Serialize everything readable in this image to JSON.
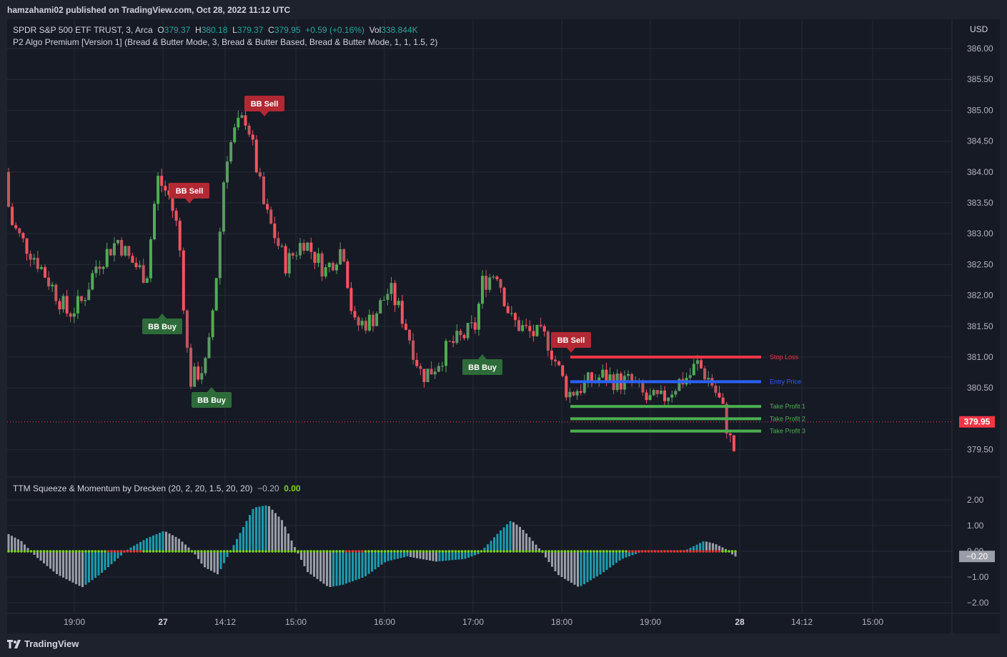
{
  "header": {
    "published": "hamzahami02 published on TradingView.com, Oct 28, 2022 11:12 UTC"
  },
  "symbol": {
    "name": "SPDR S&P 500 ETF TRUST, 3, Arca",
    "o_label": "O",
    "o_value": "379.37",
    "h_label": "H",
    "h_value": "380.18",
    "l_label": "L",
    "l_value": "379.37",
    "c_label": "C",
    "c_value": "379.95",
    "change": "+0.59 (+0.16%)",
    "vol_label": "Vol",
    "vol_value": "338.844K"
  },
  "indicator": {
    "title": "P2 Algo Premium [Version 1] (Bread & Butter Mode, 3, Bread & Butter Based, Bread & Butter Mode, 1, 1, 1.5, 2)"
  },
  "oscillator": {
    "title": "TTM Squeeze & Momentum by Drecken (20, 2, 20, 1.5, 20, 20)",
    "value1": "−0.20",
    "value2": "0.00"
  },
  "currency": "USD",
  "price_axis": [
    "386.00",
    "385.50",
    "385.00",
    "384.50",
    "384.00",
    "383.50",
    "383.00",
    "382.50",
    "382.00",
    "381.50",
    "381.00",
    "380.50",
    "379.50"
  ],
  "current_price": "379.95",
  "osc_axis": [
    "2.00",
    "1.00",
    "0.00",
    "−1.00",
    "−2.00"
  ],
  "osc_current": "−0.20",
  "time_axis": [
    "19:00",
    "27",
    "14:12",
    "15:00",
    "16:00",
    "17:00",
    "18:00",
    "19:00",
    "28",
    "14:12",
    "15:00"
  ],
  "signals": [
    {
      "label": "BB Sell",
      "type": "sell"
    },
    {
      "label": "BB Sell",
      "type": "sell"
    },
    {
      "label": "BB Buy",
      "type": "buy"
    },
    {
      "label": "BB Buy",
      "type": "buy"
    },
    {
      "label": "BB Buy",
      "type": "buy"
    },
    {
      "label": "BB Sell",
      "type": "sell"
    }
  ],
  "levels": [
    {
      "label": "Stop Loss",
      "price": 381.0,
      "color": "#f23645"
    },
    {
      "label": "Entry Price",
      "price": 380.6,
      "color": "#2962ff"
    },
    {
      "label": "Take Profit 1",
      "price": 380.2,
      "color": "#4caf50"
    },
    {
      "label": "Take Profit 2",
      "price": 380.0,
      "color": "#4caf50"
    },
    {
      "label": "Take Profit 3",
      "price": 379.8,
      "color": "#4caf50"
    }
  ],
  "footer": {
    "brand": "TradingView"
  },
  "colors": {
    "up": "#26a69a",
    "upBright": "#4caf50",
    "down": "#f23645",
    "bg": "#161a25",
    "grid": "#262b38",
    "text": "#b2b5be"
  }
}
